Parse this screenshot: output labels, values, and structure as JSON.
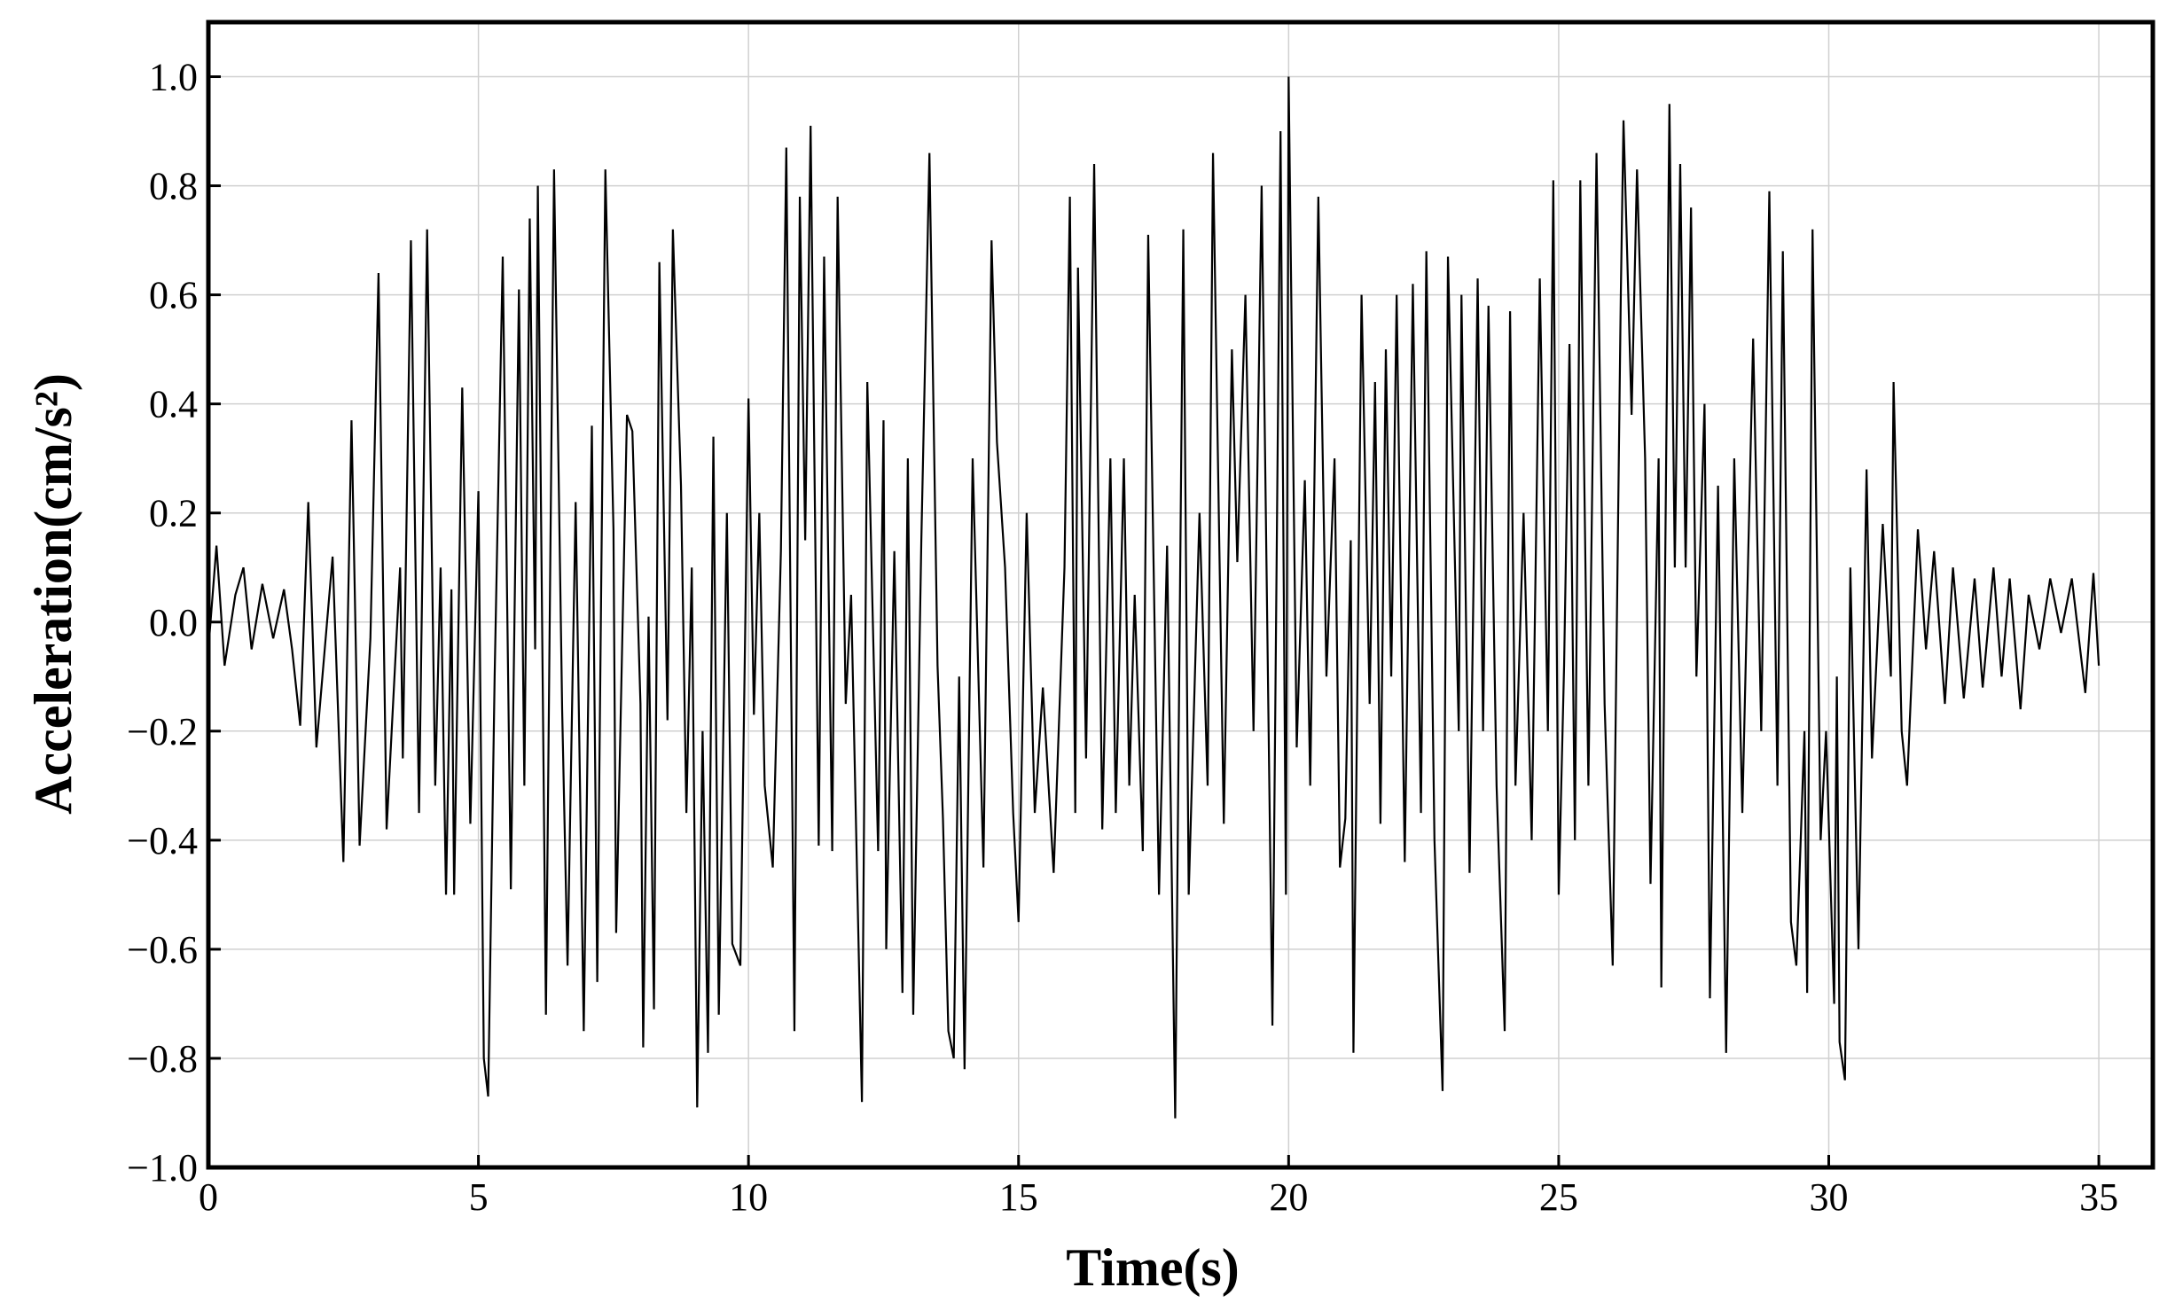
{
  "chart_data": {
    "type": "line",
    "xlabel": "Time(s)",
    "ylabel": "Acceleration(cm/s²)",
    "color": "#000000",
    "grid": true,
    "xlim": [
      0,
      36
    ],
    "ylim": [
      -1,
      1.1
    ],
    "xticks": [
      0,
      5,
      10,
      15,
      20,
      25,
      30,
      35
    ],
    "yticks": [
      {
        "value": -1.0,
        "label": "−1.0"
      },
      {
        "value": -0.8,
        "label": "−0.8"
      },
      {
        "value": -0.6,
        "label": "−0.6"
      },
      {
        "value": -0.4,
        "label": "−0.4"
      },
      {
        "value": -0.2,
        "label": "−0.2"
      },
      {
        "value": 0.0,
        "label": "0.0"
      },
      {
        "value": 0.2,
        "label": "0.2"
      },
      {
        "value": 0.4,
        "label": "0.4"
      },
      {
        "value": 0.6,
        "label": "0.6"
      },
      {
        "value": 0.8,
        "label": "0.8"
      },
      {
        "value": 1.0,
        "label": "1.0"
      }
    ],
    "x": [
      0,
      0.15,
      0.3,
      0.5,
      0.65,
      0.8,
      1.0,
      1.2,
      1.4,
      1.55,
      1.7,
      1.85,
      2.0,
      2.3,
      2.5,
      2.65,
      2.8,
      3.0,
      3.15,
      3.3,
      3.55,
      3.6,
      3.75,
      3.9,
      4.05,
      4.2,
      4.3,
      4.4,
      4.5,
      4.55,
      4.7,
      4.85,
      5.0,
      5.1,
      5.18,
      5.3,
      5.45,
      5.6,
      5.75,
      5.85,
      5.95,
      6.05,
      6.1,
      6.25,
      6.4,
      6.55,
      6.65,
      6.8,
      6.95,
      7.1,
      7.2,
      7.35,
      7.5,
      7.55,
      7.75,
      7.85,
      8.0,
      8.05,
      8.15,
      8.25,
      8.35,
      8.5,
      8.6,
      8.75,
      8.85,
      8.95,
      9.05,
      9.15,
      9.25,
      9.35,
      9.45,
      9.6,
      9.7,
      9.85,
      10.0,
      10.1,
      10.2,
      10.3,
      10.45,
      10.6,
      10.7,
      10.85,
      10.95,
      11.05,
      11.15,
      11.3,
      11.4,
      11.55,
      11.65,
      11.8,
      11.9,
      12.1,
      12.2,
      12.4,
      12.5,
      12.55,
      12.7,
      12.85,
      12.95,
      13.05,
      13.2,
      13.35,
      13.5,
      13.6,
      13.7,
      13.8,
      13.9,
      14.0,
      14.15,
      14.35,
      14.5,
      14.6,
      14.75,
      14.9,
      15.0,
      15.15,
      15.3,
      15.45,
      15.65,
      15.85,
      15.95,
      16.05,
      16.1,
      16.25,
      16.4,
      16.55,
      16.7,
      16.8,
      16.95,
      17.05,
      17.15,
      17.3,
      17.4,
      17.6,
      17.75,
      17.9,
      18.05,
      18.15,
      18.35,
      18.5,
      18.6,
      18.8,
      18.95,
      19.05,
      19.2,
      19.35,
      19.5,
      19.7,
      19.85,
      19.95,
      20.0,
      20.15,
      20.3,
      20.4,
      20.55,
      20.7,
      20.85,
      20.95,
      21.05,
      21.15,
      21.2,
      21.35,
      21.5,
      21.6,
      21.7,
      21.8,
      21.9,
      22.0,
      22.15,
      22.3,
      22.45,
      22.55,
      22.7,
      22.85,
      22.95,
      23.15,
      23.2,
      23.35,
      23.5,
      23.6,
      23.7,
      23.85,
      24.0,
      24.1,
      24.2,
      24.35,
      24.5,
      24.65,
      24.8,
      24.9,
      25.0,
      25.1,
      25.2,
      25.3,
      25.4,
      25.55,
      25.7,
      25.85,
      26.0,
      26.15,
      26.2,
      26.35,
      26.45,
      26.6,
      26.7,
      26.85,
      26.9,
      27.05,
      27.15,
      27.25,
      27.35,
      27.45,
      27.55,
      27.7,
      27.8,
      27.95,
      28.1,
      28.25,
      28.4,
      28.6,
      28.75,
      28.9,
      29.05,
      29.15,
      29.3,
      29.4,
      29.55,
      29.6,
      29.7,
      29.85,
      29.95,
      30.1,
      30.15,
      30.2,
      30.3,
      30.4,
      30.55,
      30.7,
      30.8,
      31.0,
      31.15,
      31.2,
      31.35,
      31.45,
      31.65,
      31.8,
      31.95,
      32.15,
      32.3,
      32.5,
      32.7,
      32.85,
      33.05,
      33.2,
      33.35,
      33.55,
      33.7,
      33.9,
      34.1,
      34.3,
      34.5,
      34.75,
      34.9,
      35.0
    ],
    "values": [
      -0.05,
      0.14,
      -0.08,
      0.05,
      0.1,
      -0.05,
      0.07,
      -0.03,
      0.06,
      -0.05,
      -0.19,
      0.22,
      -0.23,
      0.12,
      -0.44,
      0.37,
      -0.41,
      -0.03,
      0.64,
      -0.38,
      0.1,
      -0.25,
      0.7,
      -0.35,
      0.72,
      -0.3,
      0.1,
      -0.5,
      0.06,
      -0.5,
      0.43,
      -0.37,
      0.24,
      -0.8,
      -0.87,
      -0.1,
      0.67,
      -0.49,
      0.61,
      -0.3,
      0.74,
      -0.05,
      0.8,
      -0.72,
      0.83,
      -0.16,
      -0.63,
      0.22,
      -0.75,
      0.36,
      -0.66,
      0.83,
      0.17,
      -0.57,
      0.38,
      0.35,
      -0.15,
      -0.78,
      0.01,
      -0.71,
      0.66,
      -0.18,
      0.72,
      0.25,
      -0.35,
      0.1,
      -0.89,
      -0.2,
      -0.79,
      0.34,
      -0.72,
      0.2,
      -0.59,
      -0.63,
      0.41,
      -0.17,
      0.2,
      -0.3,
      -0.45,
      0.13,
      0.87,
      -0.75,
      0.78,
      0.15,
      0.91,
      -0.41,
      0.67,
      -0.42,
      0.78,
      -0.15,
      0.05,
      -0.88,
      0.44,
      -0.42,
      0.37,
      -0.6,
      0.13,
      -0.68,
      0.3,
      -0.72,
      0.15,
      0.86,
      -0.08,
      -0.36,
      -0.75,
      -0.8,
      -0.1,
      -0.82,
      0.3,
      -0.45,
      0.7,
      0.33,
      0.1,
      -0.35,
      -0.55,
      0.2,
      -0.35,
      -0.12,
      -0.46,
      0.1,
      0.78,
      -0.35,
      0.65,
      -0.25,
      0.84,
      -0.38,
      0.3,
      -0.35,
      0.3,
      -0.3,
      0.05,
      -0.42,
      0.71,
      -0.5,
      0.14,
      -0.91,
      0.72,
      -0.5,
      0.2,
      -0.3,
      0.86,
      -0.37,
      0.5,
      0.11,
      0.6,
      -0.2,
      0.8,
      -0.74,
      0.9,
      -0.5,
      1.0,
      -0.23,
      0.26,
      -0.3,
      0.78,
      -0.1,
      0.3,
      -0.45,
      -0.36,
      0.15,
      -0.79,
      0.6,
      -0.15,
      0.44,
      -0.37,
      0.5,
      -0.1,
      0.6,
      -0.44,
      0.62,
      -0.35,
      0.68,
      -0.4,
      -0.86,
      0.67,
      -0.2,
      0.6,
      -0.46,
      0.63,
      -0.2,
      0.58,
      -0.3,
      -0.75,
      0.57,
      -0.3,
      0.2,
      -0.4,
      0.63,
      -0.2,
      0.81,
      -0.5,
      -0.08,
      0.51,
      -0.4,
      0.81,
      -0.3,
      0.86,
      -0.15,
      -0.63,
      0.6,
      0.92,
      0.38,
      0.83,
      0.3,
      -0.48,
      0.3,
      -0.67,
      0.95,
      0.1,
      0.84,
      0.1,
      0.76,
      -0.1,
      0.4,
      -0.69,
      0.25,
      -0.79,
      0.3,
      -0.35,
      0.52,
      -0.2,
      0.79,
      -0.3,
      0.68,
      -0.55,
      -0.63,
      -0.2,
      -0.68,
      0.72,
      -0.4,
      -0.2,
      -0.7,
      -0.1,
      -0.77,
      -0.84,
      0.1,
      -0.6,
      0.28,
      -0.25,
      0.18,
      -0.1,
      0.44,
      -0.2,
      -0.3,
      0.17,
      -0.05,
      0.13,
      -0.15,
      0.1,
      -0.14,
      0.08,
      -0.12,
      0.1,
      -0.1,
      0.08,
      -0.16,
      0.05,
      -0.05,
      0.08,
      -0.02,
      0.08,
      -0.13,
      0.09,
      -0.08
    ]
  }
}
